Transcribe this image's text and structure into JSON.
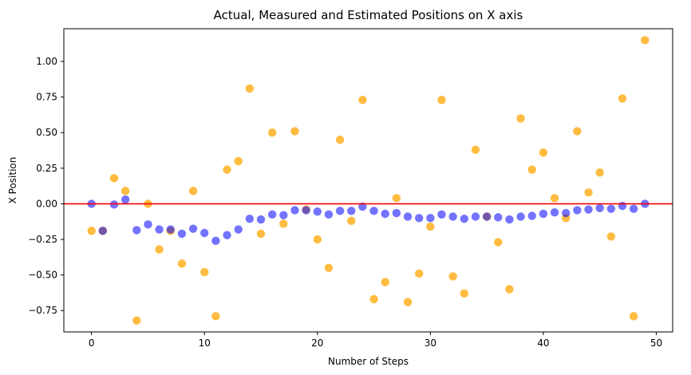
{
  "chart_data": {
    "type": "scatter",
    "title": "Actual, Measured and Estimated Positions on X axis",
    "xlabel": "Number of Steps",
    "ylabel": "X Position",
    "xlim": [
      -2.45,
      51.45
    ],
    "ylim": [
      -0.9,
      1.23
    ],
    "x_ticks": [
      0,
      10,
      20,
      30,
      40,
      50
    ],
    "y_ticks": [
      -0.75,
      -0.5,
      -0.25,
      0.0,
      0.25,
      0.5,
      0.75,
      1.0
    ],
    "y_tick_labels": [
      "−0.75",
      "−0.50",
      "−0.25",
      "0.00",
      "0.25",
      "0.50",
      "0.75",
      "1.00"
    ],
    "grid": false,
    "reference_line": {
      "y": 0.0,
      "color": "#ff0000"
    },
    "series": [
      {
        "marker": "circle",
        "color": "#ffa500",
        "alpha": 0.75,
        "x": [
          0,
          1,
          2,
          3,
          4,
          5,
          6,
          7,
          8,
          9,
          10,
          11,
          12,
          13,
          14,
          15,
          16,
          17,
          18,
          19,
          20,
          21,
          22,
          23,
          24,
          25,
          26,
          27,
          28,
          29,
          30,
          31,
          32,
          33,
          34,
          35,
          36,
          37,
          38,
          39,
          40,
          41,
          42,
          43,
          44,
          45,
          46,
          47,
          48,
          49
        ],
        "y": [
          -0.19,
          -0.19,
          0.18,
          0.09,
          -0.82,
          0.0,
          -0.32,
          -0.19,
          -0.42,
          0.09,
          -0.48,
          -0.79,
          0.24,
          0.3,
          0.81,
          -0.21,
          0.5,
          -0.14,
          0.51,
          -0.04,
          -0.25,
          -0.45,
          0.45,
          -0.12,
          0.73,
          -0.67,
          -0.55,
          0.04,
          -0.69,
          -0.49,
          -0.16,
          0.73,
          -0.51,
          -0.63,
          0.38,
          -0.09,
          -0.27,
          -0.6,
          0.6,
          0.24,
          0.36,
          0.04,
          -0.1,
          0.51,
          0.08,
          0.22,
          -0.23,
          0.74,
          -0.79,
          1.15
        ]
      },
      {
        "marker": "circle",
        "color": "#0000ff",
        "alpha": 0.55,
        "x": [
          0,
          1,
          2,
          3,
          4,
          5,
          6,
          7,
          8,
          9,
          10,
          11,
          12,
          13,
          14,
          15,
          16,
          17,
          18,
          19,
          20,
          21,
          22,
          23,
          24,
          25,
          26,
          27,
          28,
          29,
          30,
          31,
          32,
          33,
          34,
          35,
          36,
          37,
          38,
          39,
          40,
          41,
          42,
          43,
          44,
          45,
          46,
          47,
          48,
          49
        ],
        "y": [
          0.0,
          -0.19,
          -0.005,
          0.03,
          -0.185,
          -0.145,
          -0.18,
          -0.18,
          -0.21,
          -0.175,
          -0.205,
          -0.26,
          -0.22,
          -0.18,
          -0.105,
          -0.11,
          -0.075,
          -0.08,
          -0.045,
          -0.045,
          -0.055,
          -0.075,
          -0.05,
          -0.05,
          -0.02,
          -0.05,
          -0.07,
          -0.065,
          -0.09,
          -0.1,
          -0.1,
          -0.075,
          -0.09,
          -0.105,
          -0.09,
          -0.09,
          -0.095,
          -0.11,
          -0.09,
          -0.085,
          -0.07,
          -0.06,
          -0.065,
          -0.045,
          -0.04,
          -0.03,
          -0.035,
          -0.015,
          -0.035,
          0.0
        ]
      }
    ]
  }
}
